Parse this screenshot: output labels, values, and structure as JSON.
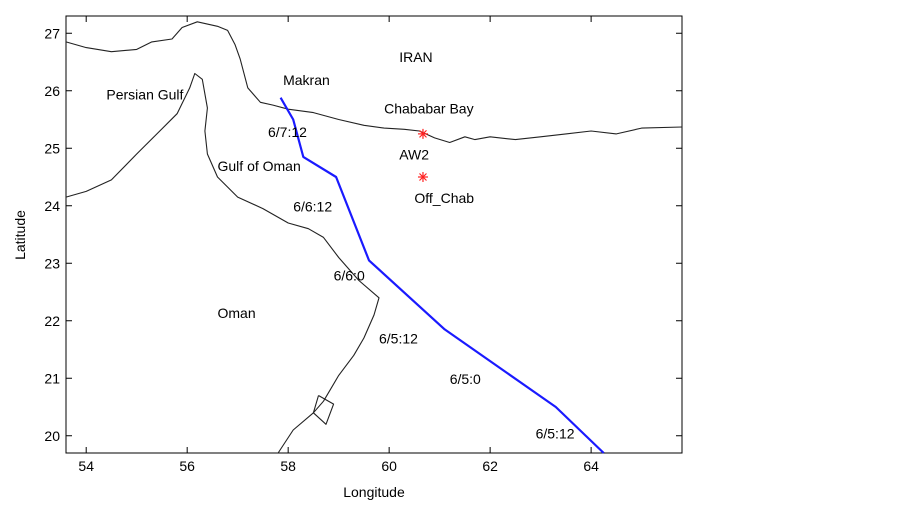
{
  "chart_data": {
    "type": "map",
    "xlabel": "Longitude",
    "ylabel": "Latitude",
    "xlim": [
      53.6,
      65.8
    ],
    "ylim": [
      19.7,
      27.3
    ],
    "xticks": [
      "54",
      "56",
      "58",
      "60",
      "62",
      "64"
    ],
    "xtick_values": [
      54,
      56,
      58,
      60,
      62,
      64
    ],
    "yticks": [
      "20",
      "21",
      "22",
      "23",
      "24",
      "25",
      "26",
      "27"
    ],
    "ytick_values": [
      20,
      21,
      22,
      23,
      24,
      25,
      26,
      27
    ],
    "grid": false,
    "place_labels": [
      {
        "text": "IRAN",
        "lon": 60.2,
        "lat": 26.5
      },
      {
        "text": "Makran",
        "lon": 57.9,
        "lat": 26.1
      },
      {
        "text": "Persian Gulf",
        "lon": 54.4,
        "lat": 25.85
      },
      {
        "text": "Chababar Bay",
        "lon": 59.9,
        "lat": 25.6
      },
      {
        "text": "AW2",
        "lon": 60.2,
        "lat": 24.8
      },
      {
        "text": "Gulf of Oman",
        "lon": 56.6,
        "lat": 24.6
      },
      {
        "text": "Off_Chab",
        "lon": 60.5,
        "lat": 24.05
      },
      {
        "text": "Oman",
        "lon": 56.6,
        "lat": 22.05
      }
    ],
    "track_labels": [
      {
        "text": "6/7:12",
        "lon": 57.6,
        "lat": 25.2
      },
      {
        "text": "6/6:12",
        "lon": 58.1,
        "lat": 23.9
      },
      {
        "text": "6/6:0",
        "lon": 58.9,
        "lat": 22.7
      },
      {
        "text": "6/5:12",
        "lon": 59.8,
        "lat": 21.6
      },
      {
        "text": "6/5:0",
        "lon": 61.2,
        "lat": 20.9
      },
      {
        "text": "6/5:12",
        "lon": 62.9,
        "lat": 19.95
      }
    ],
    "stations": [
      {
        "name": "AW2",
        "lon": 60.67,
        "lat": 25.25,
        "color": "#ff2222"
      },
      {
        "name": "Off_Chab",
        "lon": 60.67,
        "lat": 24.5,
        "color": "#ff2222"
      }
    ],
    "track": {
      "color": "#1a1aff",
      "points": [
        [
          57.85,
          25.88
        ],
        [
          58.1,
          25.5
        ],
        [
          58.3,
          24.85
        ],
        [
          58.95,
          24.5
        ],
        [
          59.6,
          23.05
        ],
        [
          61.1,
          21.85
        ],
        [
          63.3,
          20.5
        ],
        [
          64.25,
          19.7
        ]
      ]
    },
    "coastlines": [
      {
        "name": "iran-coast",
        "points": [
          [
            53.6,
            26.85
          ],
          [
            54.0,
            26.75
          ],
          [
            54.5,
            26.68
          ],
          [
            55.0,
            26.72
          ],
          [
            55.3,
            26.85
          ],
          [
            55.7,
            26.9
          ],
          [
            55.9,
            27.1
          ],
          [
            56.2,
            27.2
          ],
          [
            56.6,
            27.12
          ],
          [
            56.8,
            27.05
          ],
          [
            56.95,
            26.8
          ],
          [
            57.05,
            26.55
          ],
          [
            57.2,
            26.05
          ],
          [
            57.45,
            25.8
          ],
          [
            57.7,
            25.75
          ],
          [
            58.0,
            25.68
          ],
          [
            58.5,
            25.62
          ],
          [
            59.0,
            25.5
          ],
          [
            59.5,
            25.4
          ],
          [
            59.9,
            25.35
          ],
          [
            60.3,
            25.33
          ],
          [
            60.6,
            25.3
          ],
          [
            60.9,
            25.18
          ],
          [
            61.2,
            25.1
          ],
          [
            61.5,
            25.2
          ],
          [
            61.7,
            25.15
          ],
          [
            62.0,
            25.2
          ],
          [
            62.5,
            25.15
          ],
          [
            63.0,
            25.2
          ],
          [
            63.5,
            25.25
          ],
          [
            64.0,
            25.3
          ],
          [
            64.5,
            25.25
          ],
          [
            65.0,
            25.35
          ],
          [
            65.8,
            25.37
          ]
        ]
      },
      {
        "name": "uae-oman-coast",
        "points": [
          [
            53.6,
            24.15
          ],
          [
            54.0,
            24.25
          ],
          [
            54.5,
            24.45
          ],
          [
            55.0,
            24.9
          ],
          [
            55.4,
            25.25
          ],
          [
            55.8,
            25.6
          ],
          [
            56.05,
            26.05
          ],
          [
            56.15,
            26.3
          ],
          [
            56.3,
            26.2
          ],
          [
            56.4,
            25.7
          ],
          [
            56.35,
            25.3
          ],
          [
            56.4,
            24.9
          ],
          [
            56.6,
            24.5
          ],
          [
            57.0,
            24.15
          ],
          [
            57.5,
            23.95
          ],
          [
            58.0,
            23.7
          ],
          [
            58.4,
            23.6
          ],
          [
            58.7,
            23.45
          ],
          [
            59.0,
            23.1
          ],
          [
            59.4,
            22.7
          ],
          [
            59.8,
            22.4
          ],
          [
            59.7,
            22.1
          ],
          [
            59.5,
            21.7
          ],
          [
            59.3,
            21.4
          ],
          [
            59.0,
            21.05
          ],
          [
            58.7,
            20.6
          ],
          [
            58.5,
            20.4
          ],
          [
            58.1,
            20.1
          ],
          [
            57.8,
            19.7
          ]
        ]
      },
      {
        "name": "masirah-island",
        "points": [
          [
            58.6,
            20.7
          ],
          [
            58.9,
            20.55
          ],
          [
            58.75,
            20.2
          ],
          [
            58.5,
            20.4
          ],
          [
            58.6,
            20.7
          ]
        ]
      }
    ]
  }
}
